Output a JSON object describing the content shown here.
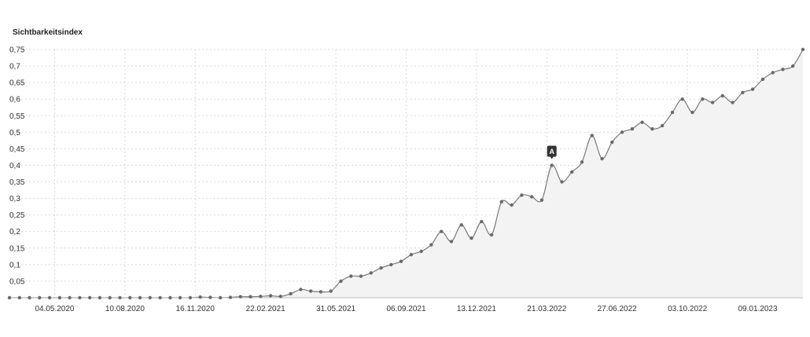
{
  "chart_data": {
    "type": "area",
    "title": "Sichtbarkeitsindex",
    "ylim": [
      0,
      0.75
    ],
    "yticks": [
      "0,05",
      "0,1",
      "0,15",
      "0,2",
      "0,25",
      "0,3",
      "0,35",
      "0,4",
      "0,45",
      "0,5",
      "0,55",
      "0,6",
      "0,65",
      "0,7",
      "0,75"
    ],
    "xticks": [
      "04.05.2020",
      "10.08.2020",
      "16.11.2020",
      "22.02.2021",
      "31.05.2021",
      "06.09.2021",
      "13.12.2021",
      "21.03.2022",
      "27.06.2022",
      "03.10.2022",
      "09.01.2023"
    ],
    "x": [
      "2020-03-02",
      "2020-03-16",
      "2020-03-30",
      "2020-04-13",
      "2020-04-27",
      "2020-05-11",
      "2020-05-25",
      "2020-06-08",
      "2020-06-22",
      "2020-07-06",
      "2020-07-20",
      "2020-08-03",
      "2020-08-17",
      "2020-08-31",
      "2020-09-14",
      "2020-09-28",
      "2020-10-12",
      "2020-10-26",
      "2020-11-09",
      "2020-11-23",
      "2020-12-07",
      "2020-12-21",
      "2021-01-04",
      "2021-01-18",
      "2021-02-01",
      "2021-02-15",
      "2021-03-01",
      "2021-03-15",
      "2021-03-29",
      "2021-04-12",
      "2021-04-26",
      "2021-05-10",
      "2021-05-24",
      "2021-06-07",
      "2021-06-21",
      "2021-07-05",
      "2021-07-19",
      "2021-08-02",
      "2021-08-16",
      "2021-08-30",
      "2021-09-13",
      "2021-09-27",
      "2021-10-11",
      "2021-10-25",
      "2021-11-08",
      "2021-11-22",
      "2021-12-06",
      "2021-12-20",
      "2022-01-03",
      "2022-01-17",
      "2022-01-31",
      "2022-02-14",
      "2022-02-28",
      "2022-03-14",
      "2022-03-28",
      "2022-04-11",
      "2022-04-25",
      "2022-05-09",
      "2022-05-23",
      "2022-06-06",
      "2022-06-20",
      "2022-07-04",
      "2022-07-18",
      "2022-08-01",
      "2022-08-15",
      "2022-08-29",
      "2022-09-12",
      "2022-09-26",
      "2022-10-10",
      "2022-10-24",
      "2022-11-07",
      "2022-11-21",
      "2022-12-05",
      "2022-12-19",
      "2023-01-02",
      "2023-01-16",
      "2023-01-30",
      "2023-02-13",
      "2023-02-27",
      "2023-03-13"
    ],
    "values": [
      0,
      0,
      0,
      0,
      0,
      0,
      0,
      0,
      0,
      0,
      0,
      0,
      0,
      0,
      0,
      0,
      0,
      0,
      0,
      0.002,
      0.001,
      0,
      0.001,
      0.003,
      0.003,
      0.004,
      0.006,
      0.004,
      0.012,
      0.025,
      0.02,
      0.018,
      0.02,
      0.05,
      0.065,
      0.065,
      0.075,
      0.09,
      0.1,
      0.11,
      0.13,
      0.14,
      0.16,
      0.2,
      0.17,
      0.22,
      0.18,
      0.23,
      0.19,
      0.29,
      0.28,
      0.31,
      0.305,
      0.295,
      0.4,
      0.35,
      0.38,
      0.41,
      0.49,
      0.42,
      0.47,
      0.5,
      0.51,
      0.53,
      0.51,
      0.52,
      0.56,
      0.6,
      0.56,
      0.6,
      0.59,
      0.61,
      0.59,
      0.62,
      0.63,
      0.66,
      0.68,
      0.69,
      0.7,
      0.75
    ],
    "annotations": [
      {
        "x": "2022-03-28",
        "text": "A"
      }
    ],
    "grid": true,
    "legend": "none"
  },
  "colors": {
    "line": "#7a7a7a",
    "point": "#6a6a6a",
    "fill": "#f3f3f3",
    "grid": "#d9d9d9",
    "annotation": "#333333"
  }
}
